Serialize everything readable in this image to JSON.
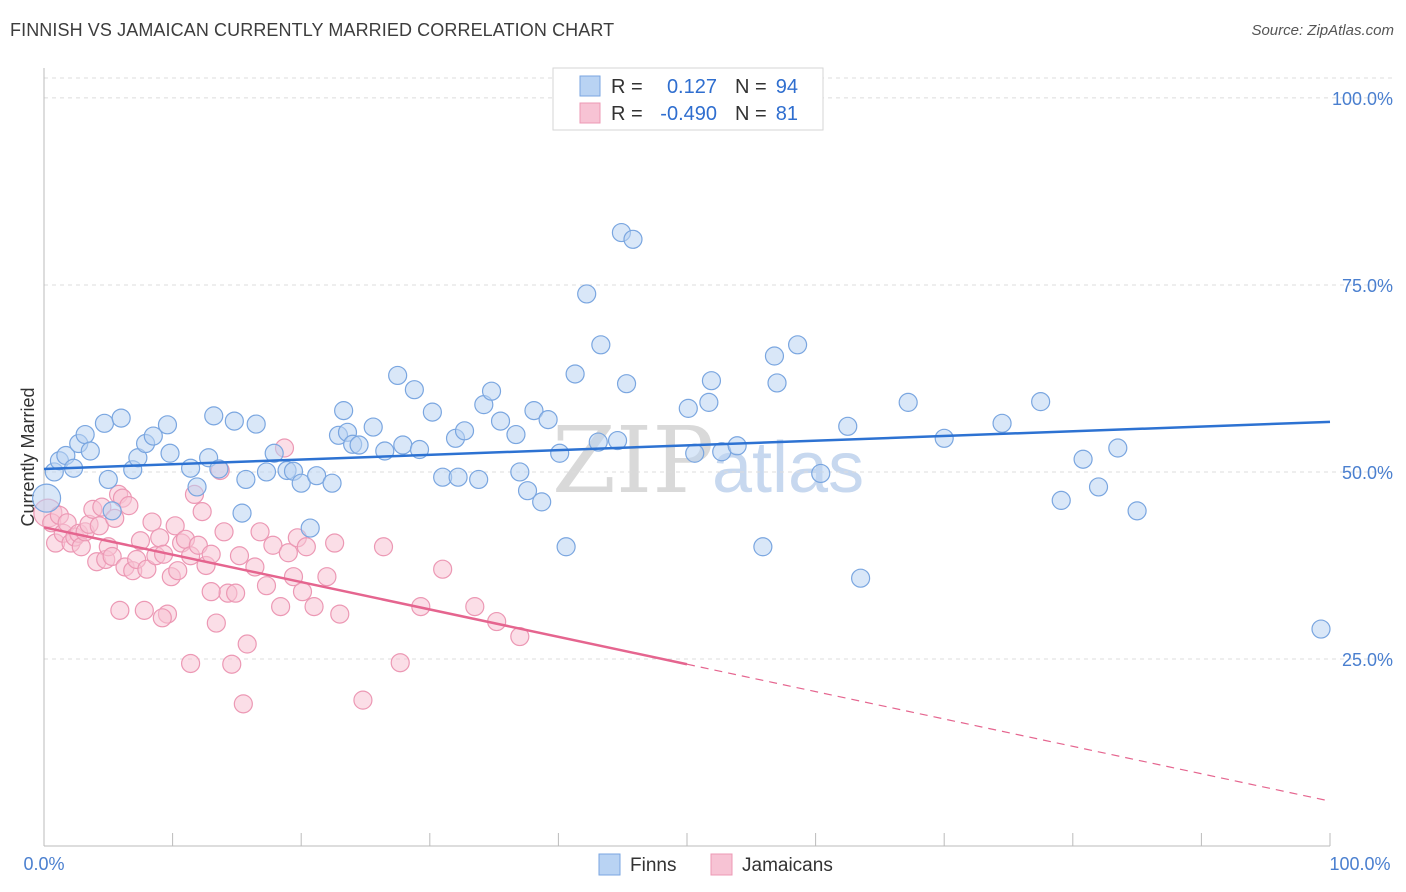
{
  "header": {
    "title": "FINNISH VS JAMAICAN CURRENTLY MARRIED CORRELATION CHART",
    "source": "Source: ZipAtlas.com"
  },
  "watermark": {
    "zip": "ZIP",
    "atlas": "atlas"
  },
  "legend_top": {
    "rows": [
      {
        "r_label": "R =",
        "r_value": "0.127",
        "n_label": "N =",
        "n_value": "94"
      },
      {
        "r_label": "R =",
        "r_value": "-0.490",
        "n_label": "N =",
        "n_value": "81"
      }
    ]
  },
  "legend_bottom": {
    "items": [
      "Finns",
      "Jamaicans"
    ]
  },
  "colors": {
    "finns_fill": "#b9d3f3",
    "finns_stroke": "#7aa6e0",
    "finns_line": "#2d72d2",
    "jam_fill": "#f7c3d4",
    "jam_stroke": "#ec98b4",
    "jam_line": "#e5658f",
    "grid": "#dcdcdc",
    "tick_text": "#4a7fcf"
  },
  "chart_data": {
    "type": "scatter",
    "title": "FINNISH VS JAMAICAN CURRENTLY MARRIED CORRELATION CHART",
    "ylabel": "Currently Married",
    "xlabel": "",
    "xlim": [
      0,
      100
    ],
    "ylim": [
      0,
      104
    ],
    "x_tick_labels": [
      "0.0%",
      "100.0%"
    ],
    "y_ticks": [
      25,
      50,
      75,
      100
    ],
    "y_tick_labels": [
      "25.0%",
      "50.0%",
      "75.0%",
      "100.0%"
    ],
    "grid": true,
    "legend_position": "top-center",
    "series": [
      {
        "name": "Finns",
        "R": 0.127,
        "N": 94,
        "trend": {
          "x0": 0,
          "y0": 50.4,
          "x1": 100,
          "y1": 56.7
        },
        "points": [
          [
            0.2,
            46.5
          ],
          [
            0.8,
            50.0
          ],
          [
            1.2,
            51.5
          ],
          [
            1.7,
            52.2
          ],
          [
            2.3,
            50.5
          ],
          [
            2.7,
            53.8
          ],
          [
            3.2,
            55.0
          ],
          [
            3.6,
            52.8
          ],
          [
            4.7,
            56.5
          ],
          [
            5.0,
            49.0
          ],
          [
            5.3,
            44.8
          ],
          [
            6.0,
            57.2
          ],
          [
            6.9,
            50.3
          ],
          [
            7.3,
            51.9
          ],
          [
            7.9,
            53.8
          ],
          [
            8.5,
            54.8
          ],
          [
            9.6,
            56.3
          ],
          [
            9.8,
            52.5
          ],
          [
            11.4,
            50.5
          ],
          [
            11.9,
            48.0
          ],
          [
            12.8,
            51.9
          ],
          [
            13.2,
            57.5
          ],
          [
            13.6,
            50.4
          ],
          [
            14.8,
            56.8
          ],
          [
            15.4,
            44.5
          ],
          [
            15.7,
            49.0
          ],
          [
            16.5,
            56.4
          ],
          [
            17.3,
            50.0
          ],
          [
            17.9,
            52.5
          ],
          [
            18.9,
            50.2
          ],
          [
            19.4,
            50.1
          ],
          [
            20.0,
            48.5
          ],
          [
            20.7,
            42.5
          ],
          [
            21.2,
            49.5
          ],
          [
            22.4,
            48.5
          ],
          [
            22.9,
            54.9
          ],
          [
            23.3,
            58.2
          ],
          [
            23.6,
            55.3
          ],
          [
            24.0,
            53.7
          ],
          [
            24.5,
            53.6
          ],
          [
            25.6,
            56.0
          ],
          [
            26.5,
            52.8
          ],
          [
            27.5,
            62.9
          ],
          [
            27.9,
            53.6
          ],
          [
            28.8,
            61.0
          ],
          [
            29.2,
            53.0
          ],
          [
            30.2,
            58.0
          ],
          [
            31.0,
            49.3
          ],
          [
            32.0,
            54.5
          ],
          [
            32.2,
            49.3
          ],
          [
            32.7,
            55.5
          ],
          [
            33.8,
            49.0
          ],
          [
            34.2,
            59.0
          ],
          [
            34.8,
            60.8
          ],
          [
            35.5,
            56.8
          ],
          [
            36.7,
            55.0
          ],
          [
            37.0,
            50.0
          ],
          [
            37.6,
            47.5
          ],
          [
            38.1,
            58.2
          ],
          [
            38.7,
            46.0
          ],
          [
            39.2,
            57.0
          ],
          [
            40.1,
            52.5
          ],
          [
            40.6,
            40.0
          ],
          [
            41.3,
            63.1
          ],
          [
            42.2,
            73.8
          ],
          [
            43.1,
            54.0
          ],
          [
            43.3,
            67.0
          ],
          [
            44.6,
            54.2
          ],
          [
            44.9,
            82.0
          ],
          [
            45.3,
            61.8
          ],
          [
            45.8,
            81.1
          ],
          [
            50.1,
            58.5
          ],
          [
            50.6,
            52.5
          ],
          [
            51.7,
            59.3
          ],
          [
            51.9,
            62.2
          ],
          [
            52.7,
            52.7
          ],
          [
            53.9,
            53.5
          ],
          [
            55.9,
            40.0
          ],
          [
            56.8,
            65.5
          ],
          [
            57.0,
            61.9
          ],
          [
            58.6,
            67.0
          ],
          [
            60.4,
            49.8
          ],
          [
            62.5,
            56.1
          ],
          [
            63.5,
            35.8
          ],
          [
            67.2,
            59.3
          ],
          [
            70.0,
            54.5
          ],
          [
            74.5,
            56.5
          ],
          [
            77.5,
            59.4
          ],
          [
            79.1,
            46.2
          ],
          [
            80.8,
            51.7
          ],
          [
            82.0,
            48.0
          ],
          [
            83.5,
            53.2
          ],
          [
            85.0,
            44.8
          ],
          [
            99.3,
            29.0
          ]
        ]
      },
      {
        "name": "Jamaicans",
        "R": -0.49,
        "N": 81,
        "trend": {
          "x0": 0,
          "y0": 42.6,
          "x1": 50,
          "y1": 24.3,
          "dashed_to_x": 100,
          "dashed_to_y": 6.0
        },
        "points": [
          [
            0.3,
            44.5
          ],
          [
            0.6,
            43.2
          ],
          [
            0.9,
            40.5
          ],
          [
            1.2,
            44.2
          ],
          [
            1.5,
            41.8
          ],
          [
            1.8,
            43.2
          ],
          [
            2.1,
            40.5
          ],
          [
            2.4,
            41.3
          ],
          [
            2.7,
            41.8
          ],
          [
            2.9,
            40.0
          ],
          [
            3.2,
            42.0
          ],
          [
            3.5,
            43.0
          ],
          [
            3.8,
            45.0
          ],
          [
            4.1,
            38.0
          ],
          [
            4.3,
            42.8
          ],
          [
            4.5,
            45.3
          ],
          [
            4.8,
            38.3
          ],
          [
            5.0,
            40.0
          ],
          [
            5.3,
            38.7
          ],
          [
            5.5,
            43.8
          ],
          [
            5.8,
            47.0
          ],
          [
            6.1,
            46.5
          ],
          [
            6.3,
            37.3
          ],
          [
            6.6,
            45.5
          ],
          [
            6.9,
            36.8
          ],
          [
            7.2,
            38.3
          ],
          [
            7.5,
            40.8
          ],
          [
            7.8,
            31.5
          ],
          [
            8.0,
            37.0
          ],
          [
            8.4,
            43.3
          ],
          [
            8.7,
            38.8
          ],
          [
            9.0,
            41.2
          ],
          [
            9.3,
            39.0
          ],
          [
            9.6,
            31.0
          ],
          [
            9.9,
            36.0
          ],
          [
            10.2,
            42.8
          ],
          [
            10.4,
            36.8
          ],
          [
            10.7,
            40.5
          ],
          [
            11.0,
            41.0
          ],
          [
            11.4,
            38.8
          ],
          [
            11.7,
            47.0
          ],
          [
            12.0,
            40.2
          ],
          [
            12.3,
            44.7
          ],
          [
            12.6,
            37.5
          ],
          [
            13.0,
            39.0
          ],
          [
            13.4,
            29.8
          ],
          [
            13.7,
            50.2
          ],
          [
            14.0,
            42.0
          ],
          [
            14.3,
            33.8
          ],
          [
            14.6,
            24.3
          ],
          [
            14.9,
            33.8
          ],
          [
            15.2,
            38.8
          ],
          [
            15.5,
            19.0
          ],
          [
            15.8,
            27.0
          ],
          [
            16.4,
            37.3
          ],
          [
            16.8,
            42.0
          ],
          [
            17.3,
            34.8
          ],
          [
            17.8,
            40.2
          ],
          [
            18.4,
            32.0
          ],
          [
            18.7,
            53.2
          ],
          [
            19.0,
            39.2
          ],
          [
            19.4,
            36.0
          ],
          [
            19.7,
            41.2
          ],
          [
            20.1,
            34.0
          ],
          [
            20.4,
            40.0
          ],
          [
            21.0,
            32.0
          ],
          [
            22.0,
            36.0
          ],
          [
            22.6,
            40.5
          ],
          [
            23.0,
            31.0
          ],
          [
            24.8,
            19.5
          ],
          [
            26.4,
            40.0
          ],
          [
            27.7,
            24.5
          ],
          [
            29.3,
            32.0
          ],
          [
            31.0,
            37.0
          ],
          [
            33.5,
            32.0
          ],
          [
            35.2,
            30.0
          ],
          [
            37.0,
            28.0
          ],
          [
            9.2,
            30.5
          ],
          [
            11.4,
            24.4
          ],
          [
            13.0,
            34.0
          ],
          [
            5.9,
            31.5
          ]
        ]
      }
    ]
  }
}
